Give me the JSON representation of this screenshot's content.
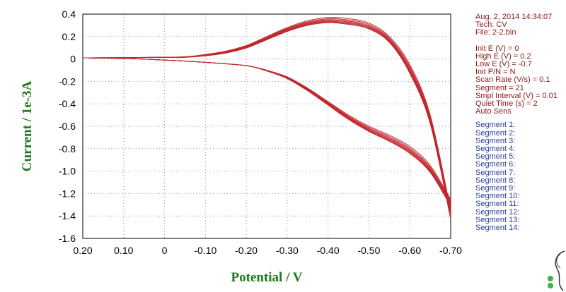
{
  "chart_data": {
    "type": "line",
    "title": "",
    "xlabel": "Potential / V",
    "ylabel": "Current / 1e-3A",
    "xlim": [
      0.2,
      -0.7
    ],
    "ylim": [
      -1.6,
      0.4
    ],
    "x_reversed": true,
    "xticks": [
      "0.20",
      "0.10",
      "0",
      "-0.10",
      "-0.20",
      "-0.30",
      "-0.40",
      "-0.50",
      "-0.60",
      "-0.70"
    ],
    "yticks": [
      "0.4",
      "0.2",
      "0",
      "-0.2",
      "-0.4",
      "-0.6",
      "-0.8",
      "-1.0",
      "-1.2",
      "-1.4",
      "-1.6"
    ],
    "grid": true,
    "grid_style": "dotted",
    "line_color": "#c0282d",
    "sweep_anodic": {
      "x": [
        0.2,
        0.1,
        0.0,
        -0.05,
        -0.1,
        -0.15,
        -0.2,
        -0.25,
        -0.3,
        -0.35,
        -0.4,
        -0.45,
        -0.5,
        -0.55,
        -0.6,
        -0.65,
        -0.7
      ],
      "y": [
        0.01,
        0.012,
        0.015,
        0.02,
        0.04,
        0.07,
        0.12,
        0.2,
        0.28,
        0.34,
        0.37,
        0.36,
        0.32,
        0.2,
        -0.05,
        -0.5,
        -1.35
      ]
    },
    "sweep_cathodic": {
      "x": [
        0.2,
        0.1,
        0.0,
        -0.1,
        -0.2,
        -0.25,
        -0.3,
        -0.35,
        -0.4,
        -0.45,
        -0.5,
        -0.55,
        -0.6,
        -0.65,
        -0.7
      ],
      "y": [
        0.01,
        0.005,
        -0.01,
        -0.03,
        -0.06,
        -0.1,
        -0.16,
        -0.26,
        -0.38,
        -0.5,
        -0.6,
        -0.68,
        -0.78,
        -0.95,
        -1.25
      ]
    },
    "cycle_offsets": [
      0.0,
      0.012,
      0.022,
      0.03,
      0.038,
      0.045,
      0.052
    ]
  },
  "info_panel": {
    "header_lines": [
      "Aug. 2, 2014    14:34:07",
      "Tech: CV",
      "File: 2-2.bin"
    ],
    "param_lines": [
      "Init E (V) = 0",
      "High E (V) = 0.2",
      "Low E (V) = -0.7",
      "Init P/N = N",
      "Scan Rate (V/s) = 0.1",
      "Segment = 21",
      "Smpl Interval (V) = 0.01",
      "Quiet Time (s) = 2",
      "Auto Sens"
    ],
    "segment_lines": [
      "Segment 1:",
      "Segment 2:",
      "Segment 3:",
      "Segment 4:",
      "Segment 5:",
      "Segment 6:",
      "Segment 7:",
      "Segment 8:",
      "Segment 9:",
      "Segment 10:",
      "Segment 11:",
      "Segment 12:",
      "Segment 13:",
      "Segment 14:"
    ]
  },
  "colors": {
    "header_text": "#8b1a1a",
    "segment_text": "#2a3f9a",
    "axis_title": "#1f7a1f"
  }
}
